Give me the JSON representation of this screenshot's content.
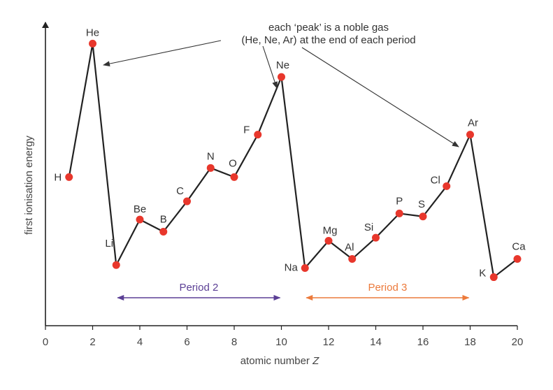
{
  "chart_data": {
    "type": "line",
    "xlabel": "atomic number",
    "xlabel_var": "Z",
    "ylabel": "first ionisation energy",
    "xlim": [
      0,
      20
    ],
    "ylim": [
      0,
      100
    ],
    "x_ticks": [
      0,
      2,
      4,
      6,
      8,
      10,
      12,
      14,
      16,
      18,
      20
    ],
    "grid": false,
    "series": [
      {
        "elements": [
          {
            "symbol": "H",
            "z": 1,
            "value": 49
          },
          {
            "symbol": "He",
            "z": 2,
            "value": 93
          },
          {
            "symbol": "Li",
            "z": 3,
            "value": 20
          },
          {
            "symbol": "Be",
            "z": 4,
            "value": 35
          },
          {
            "symbol": "B",
            "z": 5,
            "value": 31
          },
          {
            "symbol": "C",
            "z": 6,
            "value": 41
          },
          {
            "symbol": "N",
            "z": 7,
            "value": 52
          },
          {
            "symbol": "O",
            "z": 8,
            "value": 49
          },
          {
            "symbol": "F",
            "z": 9,
            "value": 63
          },
          {
            "symbol": "Ne",
            "z": 10,
            "value": 82
          },
          {
            "symbol": "Na",
            "z": 11,
            "value": 19
          },
          {
            "symbol": "Mg",
            "z": 12,
            "value": 28
          },
          {
            "symbol": "Al",
            "z": 13,
            "value": 22
          },
          {
            "symbol": "Si",
            "z": 14,
            "value": 29
          },
          {
            "symbol": "P",
            "z": 15,
            "value": 37
          },
          {
            "symbol": "S",
            "z": 16,
            "value": 36
          },
          {
            "symbol": "Cl",
            "z": 17,
            "value": 46
          },
          {
            "symbol": "Ar",
            "z": 18,
            "value": 63
          },
          {
            "symbol": "K",
            "z": 19,
            "value": 16
          },
          {
            "symbol": "Ca",
            "z": 20,
            "value": 22
          }
        ]
      }
    ],
    "annotation": {
      "line1": "each ‘peak’ is a noble gas",
      "line2": "(He, Ne, Ar) at the end of each period",
      "targets": [
        "He",
        "Ne",
        "Ar"
      ]
    },
    "periods": [
      {
        "label": "Period 2",
        "from": 3,
        "to": 10,
        "color": "#5b3f95"
      },
      {
        "label": "Period 3",
        "from": 11,
        "to": 18,
        "color": "#ec7a3b"
      }
    ],
    "colors": {
      "point": "#e8372c",
      "line": "#222222",
      "axis": "#222222"
    }
  }
}
